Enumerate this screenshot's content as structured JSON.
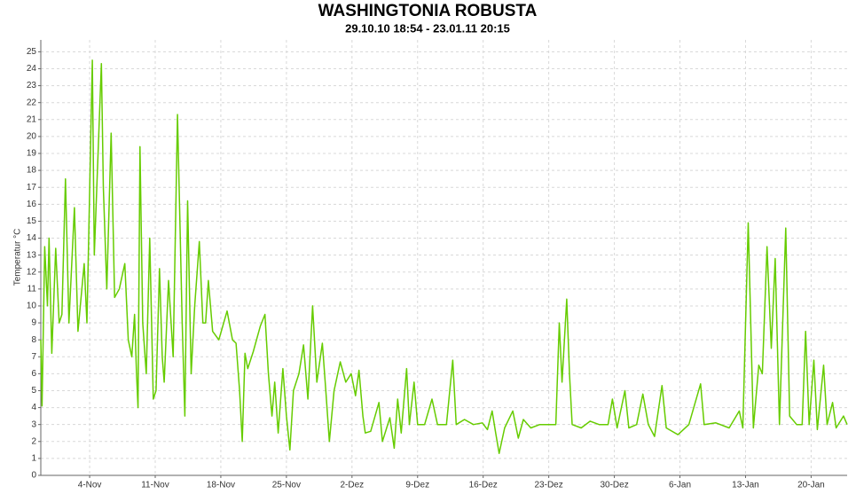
{
  "chart_data": {
    "type": "line",
    "title": "WASHINGTONIA ROBUSTA",
    "subtitle": "29.10.10 18:54 - 23.01.11 20:15",
    "y_label": "Temperatur °C",
    "color": "#66cc00",
    "grid": true,
    "xlim": [
      "2010-10-29 18:54",
      "2011-01-23 20:15"
    ],
    "ylim": [
      0,
      25.7
    ],
    "yticks": [
      0,
      1,
      2,
      3,
      4,
      5,
      6,
      7,
      8,
      9,
      10,
      11,
      12,
      13,
      14,
      15,
      16,
      17,
      18,
      19,
      20,
      21,
      22,
      23,
      24,
      25
    ],
    "xticks": [
      {
        "value": "2010-11-04",
        "label": "4-Nov"
      },
      {
        "value": "2010-11-11",
        "label": "11-Nov"
      },
      {
        "value": "2010-11-18",
        "label": "18-Nov"
      },
      {
        "value": "2010-11-25",
        "label": "25-Nov"
      },
      {
        "value": "2010-12-02",
        "label": "2-Dez"
      },
      {
        "value": "2010-12-09",
        "label": "9-Dez"
      },
      {
        "value": "2010-12-16",
        "label": "16-Dez"
      },
      {
        "value": "2010-12-23",
        "label": "23-Dez"
      },
      {
        "value": "2010-12-30",
        "label": "30-Dez"
      },
      {
        "value": "2011-01-06",
        "label": "6-Jan"
      },
      {
        "value": "2011-01-13",
        "label": "13-Jan"
      },
      {
        "value": "2011-01-20",
        "label": "20-Jan"
      }
    ],
    "x": [
      "2010-10-29 18:54",
      "2010-10-29 22:00",
      "2010-10-30 05:00",
      "2010-10-30 12:00",
      "2010-10-30 16:00",
      "2010-10-30 23:00",
      "2010-10-31 09:00",
      "2010-10-31 18:00",
      "2010-11-01 01:00",
      "2010-11-01 10:00",
      "2010-11-01 19:00",
      "2010-11-02 09:00",
      "2010-11-02 18:00",
      "2010-11-03 10:00",
      "2010-11-03 17:00",
      "2010-11-04 07:00",
      "2010-11-04 12:00",
      "2010-11-05 06:00",
      "2010-11-05 11:00",
      "2010-11-05 20:00",
      "2010-11-06 07:00",
      "2010-11-06 16:00",
      "2010-11-07 04:00",
      "2010-11-07 18:00",
      "2010-11-08 03:00",
      "2010-11-08 12:00",
      "2010-11-08 19:00",
      "2010-11-09 00:00",
      "2010-11-09 04:00",
      "2010-11-09 09:00",
      "2010-11-09 16:00",
      "2010-11-10 01:00",
      "2010-11-10 10:00",
      "2010-11-10 19:00",
      "2010-11-11 02:00",
      "2010-11-11 11:00",
      "2010-11-11 18:00",
      "2010-11-11 23:00",
      "2010-11-12 10:00",
      "2010-11-12 22:00",
      "2010-11-13 09:00",
      "2010-11-13 21:00",
      "2010-11-14 04:00",
      "2010-11-14 11:00",
      "2010-11-14 20:00",
      "2010-11-15 05:00",
      "2010-11-15 17:00",
      "2010-11-16 02:00",
      "2010-11-16 09:00",
      "2010-11-16 16:00",
      "2010-11-17 03:00",
      "2010-11-17 19:00",
      "2010-11-18 16:00",
      "2010-11-19 06:00",
      "2010-11-19 15:00",
      "2010-11-20 00:00",
      "2010-11-20 07:00",
      "2010-11-20 14:00",
      "2010-11-20 21:00",
      "2010-11-21 11:00",
      "2010-11-22 05:00",
      "2010-11-22 17:00",
      "2010-11-23 02:00",
      "2010-11-23 11:00",
      "2010-11-23 18:00",
      "2010-11-24 03:00",
      "2010-11-24 15:00",
      "2010-11-25 00:00",
      "2010-11-25 09:00",
      "2010-11-25 18:00",
      "2010-11-26 08:00",
      "2010-11-26 20:00",
      "2010-11-27 07:00",
      "2010-11-27 19:00",
      "2010-11-28 06:00",
      "2010-11-28 20:00",
      "2010-11-29 05:00",
      "2010-11-29 14:00",
      "2010-11-30 02:00",
      "2010-11-30 18:00",
      "2010-12-01 08:00",
      "2010-12-01 22:00",
      "2010-12-02 09:00",
      "2010-12-02 18:00",
      "2010-12-03 04:00",
      "2010-12-03 10:00",
      "2010-12-04 00:00",
      "2010-12-04 21:00",
      "2010-12-05 06:00",
      "2010-12-06 01:00",
      "2010-12-06 12:00",
      "2010-12-06 21:00",
      "2010-12-07 06:00",
      "2010-12-07 20:00",
      "2010-12-08 03:00",
      "2010-12-08 15:00",
      "2010-12-09 00:00",
      "2010-12-09 18:00",
      "2010-12-10 13:00",
      "2010-12-11 03:00",
      "2010-12-12 02:00",
      "2010-12-12 18:00",
      "2010-12-13 03:00",
      "2010-12-14 00:00",
      "2010-12-14 23:00",
      "2010-12-15 22:00",
      "2010-12-16 11:00",
      "2010-12-16 23:00",
      "2010-12-17 08:00",
      "2010-12-17 17:00",
      "2010-12-18 07:00",
      "2010-12-19 04:00",
      "2010-12-19 18:00",
      "2010-12-20 07:00",
      "2010-12-21 02:00",
      "2010-12-22 01:00",
      "2010-12-23 00:00",
      "2010-12-23 18:00",
      "2010-12-24 03:00",
      "2010-12-24 10:00",
      "2010-12-24 22:00",
      "2010-12-25 05:00",
      "2010-12-25 12:00",
      "2010-12-26 11:00",
      "2010-12-27 10:00",
      "2010-12-28 09:00",
      "2010-12-29 08:00",
      "2010-12-29 19:00",
      "2010-12-30 07:00",
      "2010-12-31 03:00",
      "2010-12-31 13:00",
      "2011-01-01 09:00",
      "2011-01-02 01:00",
      "2011-01-02 15:00",
      "2011-01-03 07:00",
      "2011-01-04 02:00",
      "2011-01-04 13:00",
      "2011-01-05 19:00",
      "2011-01-06 23:00",
      "2011-01-08 05:00",
      "2011-01-08 14:00",
      "2011-01-09 20:00",
      "2011-01-11 06:00",
      "2011-01-12 08:00",
      "2011-01-12 17:00",
      "2011-01-13 07:00",
      "2011-01-13 20:00",
      "2011-01-14 10:00",
      "2011-01-14 19:00",
      "2011-01-15 07:00",
      "2011-01-15 18:00",
      "2011-01-16 04:00",
      "2011-01-16 15:00",
      "2011-01-17 07:00",
      "2011-01-17 17:00",
      "2011-01-18 11:00",
      "2011-01-19 01:00",
      "2011-01-19 10:00",
      "2011-01-19 19:00",
      "2011-01-20 07:00",
      "2011-01-20 16:00",
      "2011-01-21 08:00",
      "2011-01-21 17:00",
      "2011-01-22 07:00",
      "2011-01-22 16:00",
      "2011-01-23 11:00",
      "2011-01-23 20:15"
    ],
    "values": [
      8,
      4.1,
      13.5,
      10,
      14,
      7.2,
      13.4,
      9,
      9.5,
      17.5,
      9,
      15.8,
      8.5,
      12.5,
      9,
      24.5,
      13,
      24.3,
      17,
      11,
      20.2,
      10.5,
      11,
      12.5,
      8,
      7,
      9.5,
      6,
      4,
      19.4,
      9,
      6,
      14,
      4.5,
      5,
      12.2,
      7,
      5.5,
      11.5,
      7,
      21.3,
      9,
      3.5,
      16.2,
      6,
      10,
      13.8,
      9,
      9,
      11.5,
      8.5,
      8,
      9.7,
      8,
      7.8,
      5,
      2,
      7.2,
      6.3,
      7.3,
      8.8,
      9.5,
      6,
      3.5,
      5.5,
      2.5,
      6.3,
      3.5,
      1.5,
      5,
      6,
      7.7,
      4.5,
      10,
      5.5,
      7.8,
      5,
      2,
      5,
      6.7,
      5.5,
      6,
      4.7,
      6.2,
      3.5,
      2.5,
      2.6,
      4.3,
      2,
      3.4,
      1.6,
      4.5,
      2.5,
      6.3,
      3,
      5.5,
      3,
      3,
      4.5,
      3,
      3,
      6.8,
      3,
      3.3,
      3,
      3.1,
      2.7,
      3.8,
      2.5,
      1.3,
      2.8,
      3.8,
      2.2,
      3.3,
      2.8,
      3,
      3,
      3,
      9,
      5.5,
      10.4,
      6,
      3,
      2.8,
      3.2,
      3,
      3,
      4.5,
      2.8,
      5,
      2.8,
      3,
      4.8,
      3,
      2.3,
      5.3,
      2.8,
      2.4,
      3,
      5.4,
      3,
      3.1,
      2.8,
      3.8,
      2.8,
      14.9,
      2.8,
      6.5,
      6,
      13.5,
      7.5,
      12.8,
      3,
      14.6,
      3.5,
      3,
      3,
      8.5,
      3,
      6.8,
      2.7,
      6.5,
      3,
      4.3,
      2.8,
      3.5,
      3
    ]
  }
}
